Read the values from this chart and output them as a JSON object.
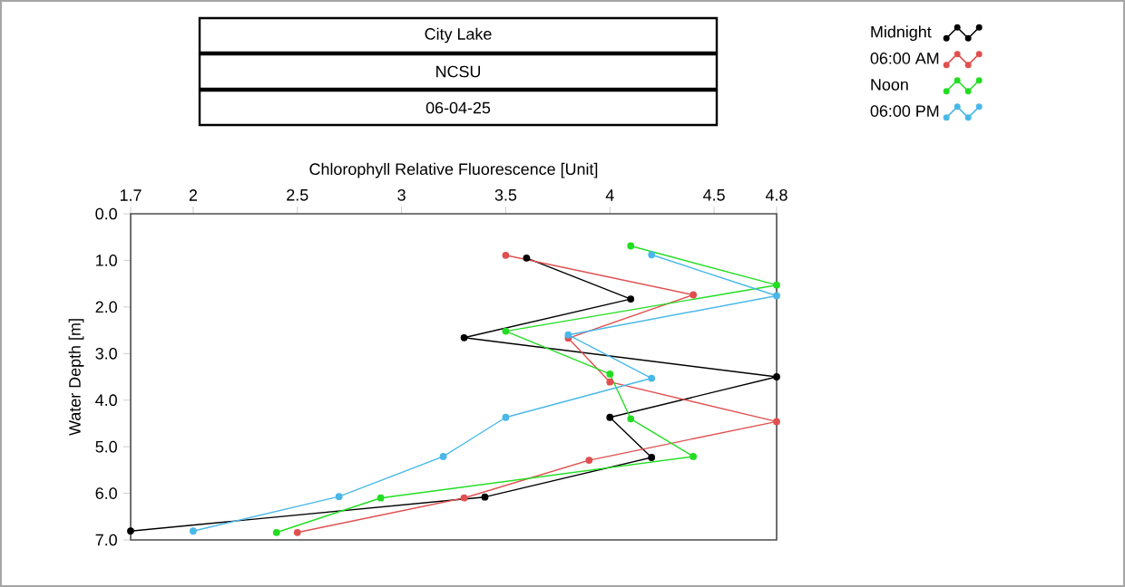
{
  "chart_data": {
    "type": "line",
    "title": "City Lake",
    "subtitle": "NCSU",
    "annotations": [
      "06-04-25"
    ],
    "xlabel": "Chlorophyll Relative Fluorescence [Unit]",
    "ylabel": "Water Depth [m]",
    "xlim": [
      1.7,
      4.8
    ],
    "ylim": [
      7,
      0
    ],
    "xticks": [
      1.7,
      2,
      2.5,
      3,
      3.5,
      4,
      4.5,
      4.8
    ],
    "yticks": [
      {
        "value": 0,
        "label": "0.0"
      },
      {
        "value": 1,
        "label": "1.0"
      },
      {
        "value": 2,
        "label": "2.0"
      },
      {
        "value": 3,
        "label": "3.0"
      },
      {
        "value": 4,
        "label": "4.0"
      },
      {
        "value": 5,
        "label": "5.0"
      },
      {
        "value": 6,
        "label": "6.0"
      },
      {
        "value": 7,
        "label": "7.0"
      }
    ],
    "marker": "circle",
    "legend": "top right",
    "series": [
      {
        "name": "Midnight",
        "color": "#000000",
        "x": [
          3.6,
          4.1,
          3.3,
          4.8,
          4.0,
          4.2,
          3.4,
          1.7
        ],
        "values": [
          0.95,
          1.83,
          2.66,
          3.5,
          4.37,
          5.23,
          6.08,
          6.81
        ]
      },
      {
        "name": "06:00 AM",
        "color": "#e05050",
        "x": [
          3.5,
          4.4,
          3.8,
          4.0,
          4.8,
          3.9,
          3.3,
          2.5
        ],
        "values": [
          0.89,
          1.74,
          2.67,
          3.61,
          4.46,
          5.29,
          6.1,
          6.84
        ]
      },
      {
        "name": "Noon",
        "color": "#22dd22",
        "x": [
          4.1,
          4.8,
          3.5,
          4.0,
          4.1,
          4.4,
          2.9,
          2.4
        ],
        "values": [
          0.69,
          1.53,
          2.52,
          3.44,
          4.4,
          5.21,
          6.1,
          6.84
        ]
      },
      {
        "name": "06:00 PM",
        "color": "#4ab8e8",
        "x": [
          4.2,
          4.8,
          3.8,
          4.2,
          3.5,
          3.2,
          2.7,
          2.0
        ],
        "values": [
          0.88,
          1.76,
          2.6,
          3.53,
          4.37,
          5.21,
          6.07,
          6.81
        ]
      }
    ]
  }
}
